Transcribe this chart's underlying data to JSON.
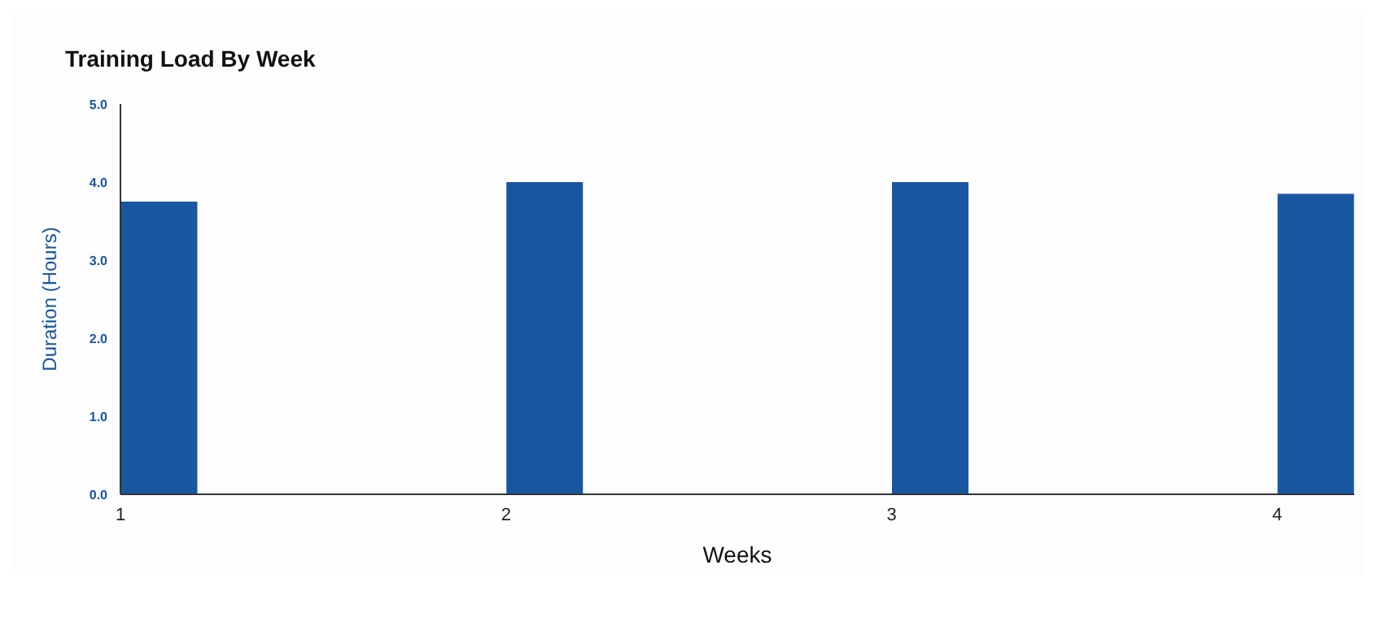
{
  "chart_data": {
    "type": "bar",
    "title": "Training Load By Week",
    "xlabel": "Weeks",
    "ylabel": "Duration (Hours)",
    "x": [
      1.1,
      2.1,
      3.1,
      4.1
    ],
    "values": [
      3.75,
      4.0,
      4.0,
      3.85
    ],
    "color": "#1957a0",
    "xlim": [
      1,
      4.2
    ],
    "xticks": [
      1,
      2,
      3,
      4
    ],
    "ylim": [
      0,
      5
    ],
    "yticks": [
      {
        "value": 0,
        "label": "0.0"
      },
      {
        "value": 1,
        "label": "1.0"
      },
      {
        "value": 2,
        "label": "2.0"
      },
      {
        "value": 3,
        "label": "3.0"
      },
      {
        "value": 4,
        "label": "4.0"
      },
      {
        "value": 5,
        "label": "5.0"
      }
    ],
    "grid": false,
    "legend": false
  }
}
